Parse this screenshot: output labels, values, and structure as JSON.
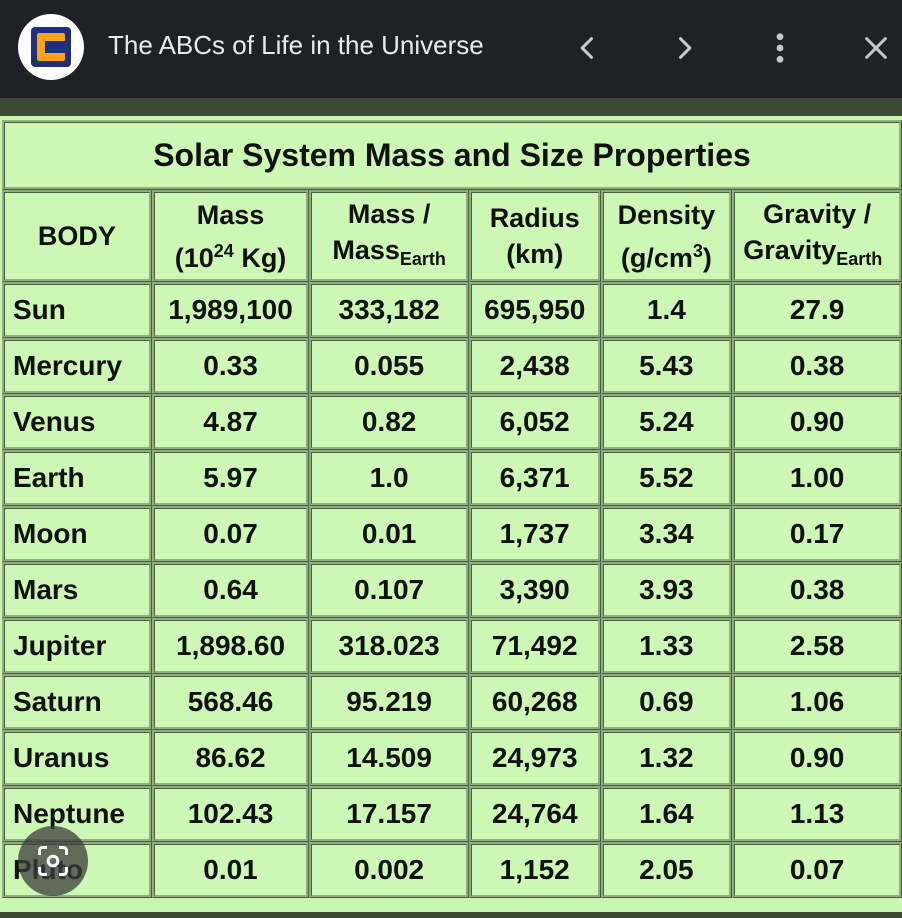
{
  "browser": {
    "page_title": "The ABCs of Life in the Universe",
    "icons": {
      "favicon": "site-logo-icon",
      "back": "chevron-left-icon",
      "forward": "chevron-right-icon",
      "more": "more-vertical-icon",
      "close": "close-icon",
      "lens": "google-lens-icon"
    }
  },
  "table": {
    "title": "Solar System Mass and Size Properties",
    "headers": {
      "body": "BODY",
      "mass_l1": "Mass",
      "mass_l2_a": "(10",
      "mass_l2_sup": "24",
      "mass_l2_b": " Kg)",
      "massrel_l1": "Mass /",
      "massrel_l2": "Mass",
      "massrel_sub": "Earth",
      "radius_l1": "Radius",
      "radius_l2": "(km)",
      "density_l1": "Density",
      "density_l2_a": "(g/cm",
      "density_l2_sup": "3",
      "density_l2_b": ")",
      "gravity_l1": "Gravity /",
      "gravity_l2": "Gravity",
      "gravity_sub": "Earth"
    },
    "rows": [
      [
        "Sun",
        "1,989,100",
        "333,182",
        "695,950",
        "1.4",
        "27.9"
      ],
      [
        "Mercury",
        "0.33",
        "0.055",
        "2,438",
        "5.43",
        "0.38"
      ],
      [
        "Venus",
        "4.87",
        "0.82",
        "6,052",
        "5.24",
        "0.90"
      ],
      [
        "Earth",
        "5.97",
        "1.0",
        "6,371",
        "5.52",
        "1.00"
      ],
      [
        "Moon",
        "0.07",
        "0.01",
        "1,737",
        "3.34",
        "0.17"
      ],
      [
        "Mars",
        "0.64",
        "0.107",
        "3,390",
        "3.93",
        "0.38"
      ],
      [
        "Jupiter",
        "1,898.60",
        "318.023",
        "71,492",
        "1.33",
        "2.58"
      ],
      [
        "Saturn",
        "568.46",
        "95.219",
        "60,268",
        "0.69",
        "1.06"
      ],
      [
        "Uranus",
        "86.62",
        "14.509",
        "24,973",
        "1.32",
        "0.90"
      ],
      [
        "Neptune",
        "102.43",
        "17.157",
        "24,764",
        "1.64",
        "1.13"
      ],
      [
        "Pluto",
        "0.01",
        "0.002",
        "1,152",
        "2.05",
        "0.07"
      ]
    ]
  },
  "colors": {
    "topbar": "#202124",
    "table_bg": "#ccf7b4",
    "border": "#8fb07c",
    "accent_logo_blue": "#1f2f7a",
    "accent_logo_orange": "#f4a31b"
  }
}
